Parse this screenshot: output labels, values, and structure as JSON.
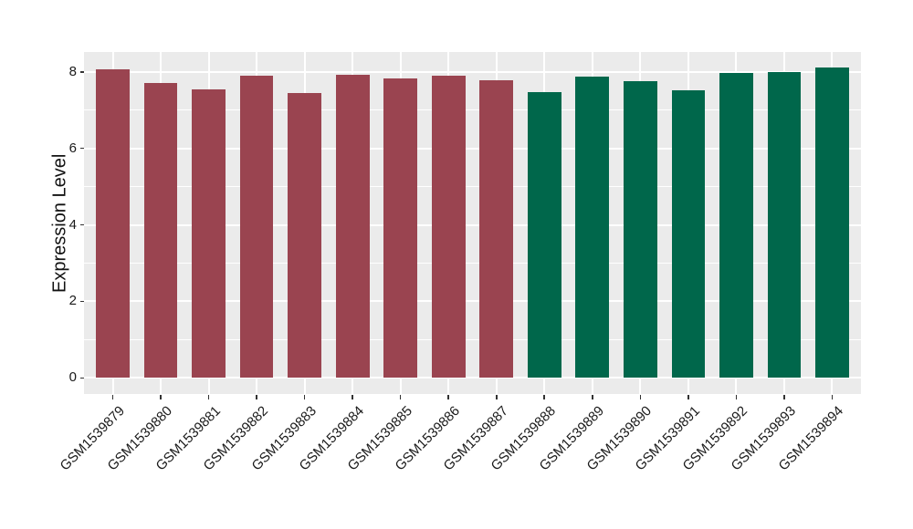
{
  "chart_data": {
    "type": "bar",
    "ylabel": "Expression Level",
    "xlabel": "",
    "categories": [
      "GSM1539879",
      "GSM1539880",
      "GSM1539881",
      "GSM1539882",
      "GSM1539883",
      "GSM1539884",
      "GSM1539885",
      "GSM1539886",
      "GSM1539887",
      "GSM1539888",
      "GSM1539889",
      "GSM1539890",
      "GSM1539891",
      "GSM1539892",
      "GSM1539893",
      "GSM1539894"
    ],
    "values": [
      8.06,
      7.7,
      7.54,
      7.9,
      7.44,
      7.92,
      7.83,
      7.9,
      7.77,
      7.48,
      7.87,
      7.75,
      7.53,
      7.97,
      7.99,
      8.11
    ],
    "bar_colors": [
      "#9A4450",
      "#9A4450",
      "#9A4450",
      "#9A4450",
      "#9A4450",
      "#9A4450",
      "#9A4450",
      "#9A4450",
      "#9A4450",
      "#00674B",
      "#00674B",
      "#00674B",
      "#00674B",
      "#00674B",
      "#00674B",
      "#00674B"
    ],
    "group_colors": {
      "maroon": "#9A4450",
      "green": "#00674B"
    },
    "yticks": [
      0,
      2,
      4,
      6,
      8
    ],
    "yticks_minor": [
      1,
      3,
      5,
      7
    ],
    "ylim": [
      -0.42,
      8.52
    ],
    "bar_width_fraction": 0.7,
    "grid": true,
    "legend": false,
    "panel_bg": "#EBEBEB",
    "grid_color": "#FFFFFF",
    "tick_color": "#333333",
    "text_color": "#1A1A1A"
  }
}
